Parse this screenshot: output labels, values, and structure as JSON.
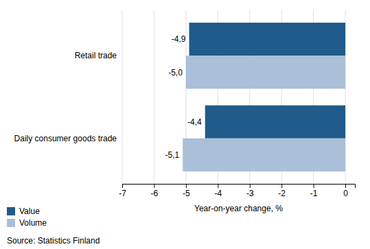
{
  "chart_data": {
    "type": "bar",
    "orientation": "horizontal",
    "categories": [
      "Daily consumer goods trade",
      "Retail trade"
    ],
    "series": [
      {
        "name": "Value",
        "color": "#1F5C8B",
        "values": [
          -4.4,
          -4.9
        ],
        "value_labels": [
          "-4,4",
          "-4,9"
        ]
      },
      {
        "name": "Volume",
        "color": "#AABFD8",
        "values": [
          -5.1,
          -5.0
        ],
        "value_labels": [
          "-5,1",
          "-5,0"
        ]
      }
    ],
    "xlabel": "Year-on-year change, %",
    "xlim": [
      -7,
      0.3
    ],
    "xticks": [
      -7,
      -6,
      -5,
      -4,
      -3,
      -2,
      -1,
      0
    ],
    "grid": true,
    "legend": "lower left",
    "data_labels": true,
    "annotations": [
      "Source: Statistics Finland"
    ]
  }
}
